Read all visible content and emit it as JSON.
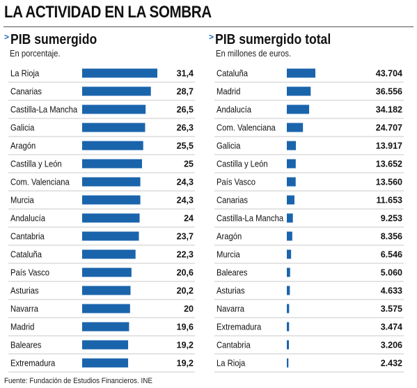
{
  "title": "LA ACTIVIDAD EN LA SOMBRA",
  "source": "Fuente: Fundación de Estudios Financieros. INE",
  "colors": {
    "bar": "#1a64ac",
    "row_rule": "#c9c9c9",
    "chevron": "#1a6ab3"
  },
  "chart_data": [
    {
      "type": "bar",
      "orientation": "horizontal",
      "title": "PIB sumergido",
      "subtitle": "En porcentaje.",
      "categories": [
        "La Rioja",
        "Canarias",
        "Castilla-La Mancha",
        "Galicia",
        "Aragón",
        "Castilla y León",
        "Com. Valenciana",
        "Murcia",
        "Andalucía",
        "Cantabria",
        "Cataluña",
        "País Vasco",
        "Asturias",
        "Navarra",
        "Madrid",
        "Baleares",
        "Extremadura"
      ],
      "values": [
        31.4,
        28.7,
        26.5,
        26.3,
        25.5,
        25,
        24.3,
        24.3,
        24,
        23.7,
        22.3,
        20.6,
        20.2,
        20,
        19.6,
        19.2,
        19.2
      ],
      "value_labels": [
        "31,4",
        "28,7",
        "26,5",
        "26,3",
        "25,5",
        "25",
        "24,3",
        "24,3",
        "24",
        "23,7",
        "22,3",
        "20,6",
        "20,2",
        "20",
        "19,6",
        "19,2",
        "19,2"
      ],
      "xlim": [
        0,
        31.4
      ]
    },
    {
      "type": "bar",
      "orientation": "horizontal",
      "title": "PIB sumergido total",
      "subtitle": "En millones de euros.",
      "categories": [
        "Cataluña",
        "Madrid",
        "Andalucía",
        "Com. Valenciana",
        "Galicia",
        "Castilla y León",
        "País Vasco",
        "Canarias",
        "Castilla-La Mancha",
        "Aragón",
        "Murcia",
        "Baleares",
        "Asturias",
        "Navarra",
        "Extremadura",
        "Cantabria",
        "La Rioja"
      ],
      "values": [
        43704,
        36556,
        34182,
        24707,
        13917,
        13652,
        13560,
        11653,
        9253,
        8356,
        6546,
        5060,
        4633,
        3575,
        3474,
        3206,
        2432
      ],
      "value_labels": [
        "43.704",
        "36.556",
        "34.182",
        "24.707",
        "13.917",
        "13.652",
        "13.560",
        "11.653",
        "9.253",
        "8.356",
        "6.546",
        "5.060",
        "4.633",
        "3.575",
        "3.474",
        "3.206",
        "2.432"
      ],
      "xlim": [
        0,
        43704
      ]
    }
  ]
}
